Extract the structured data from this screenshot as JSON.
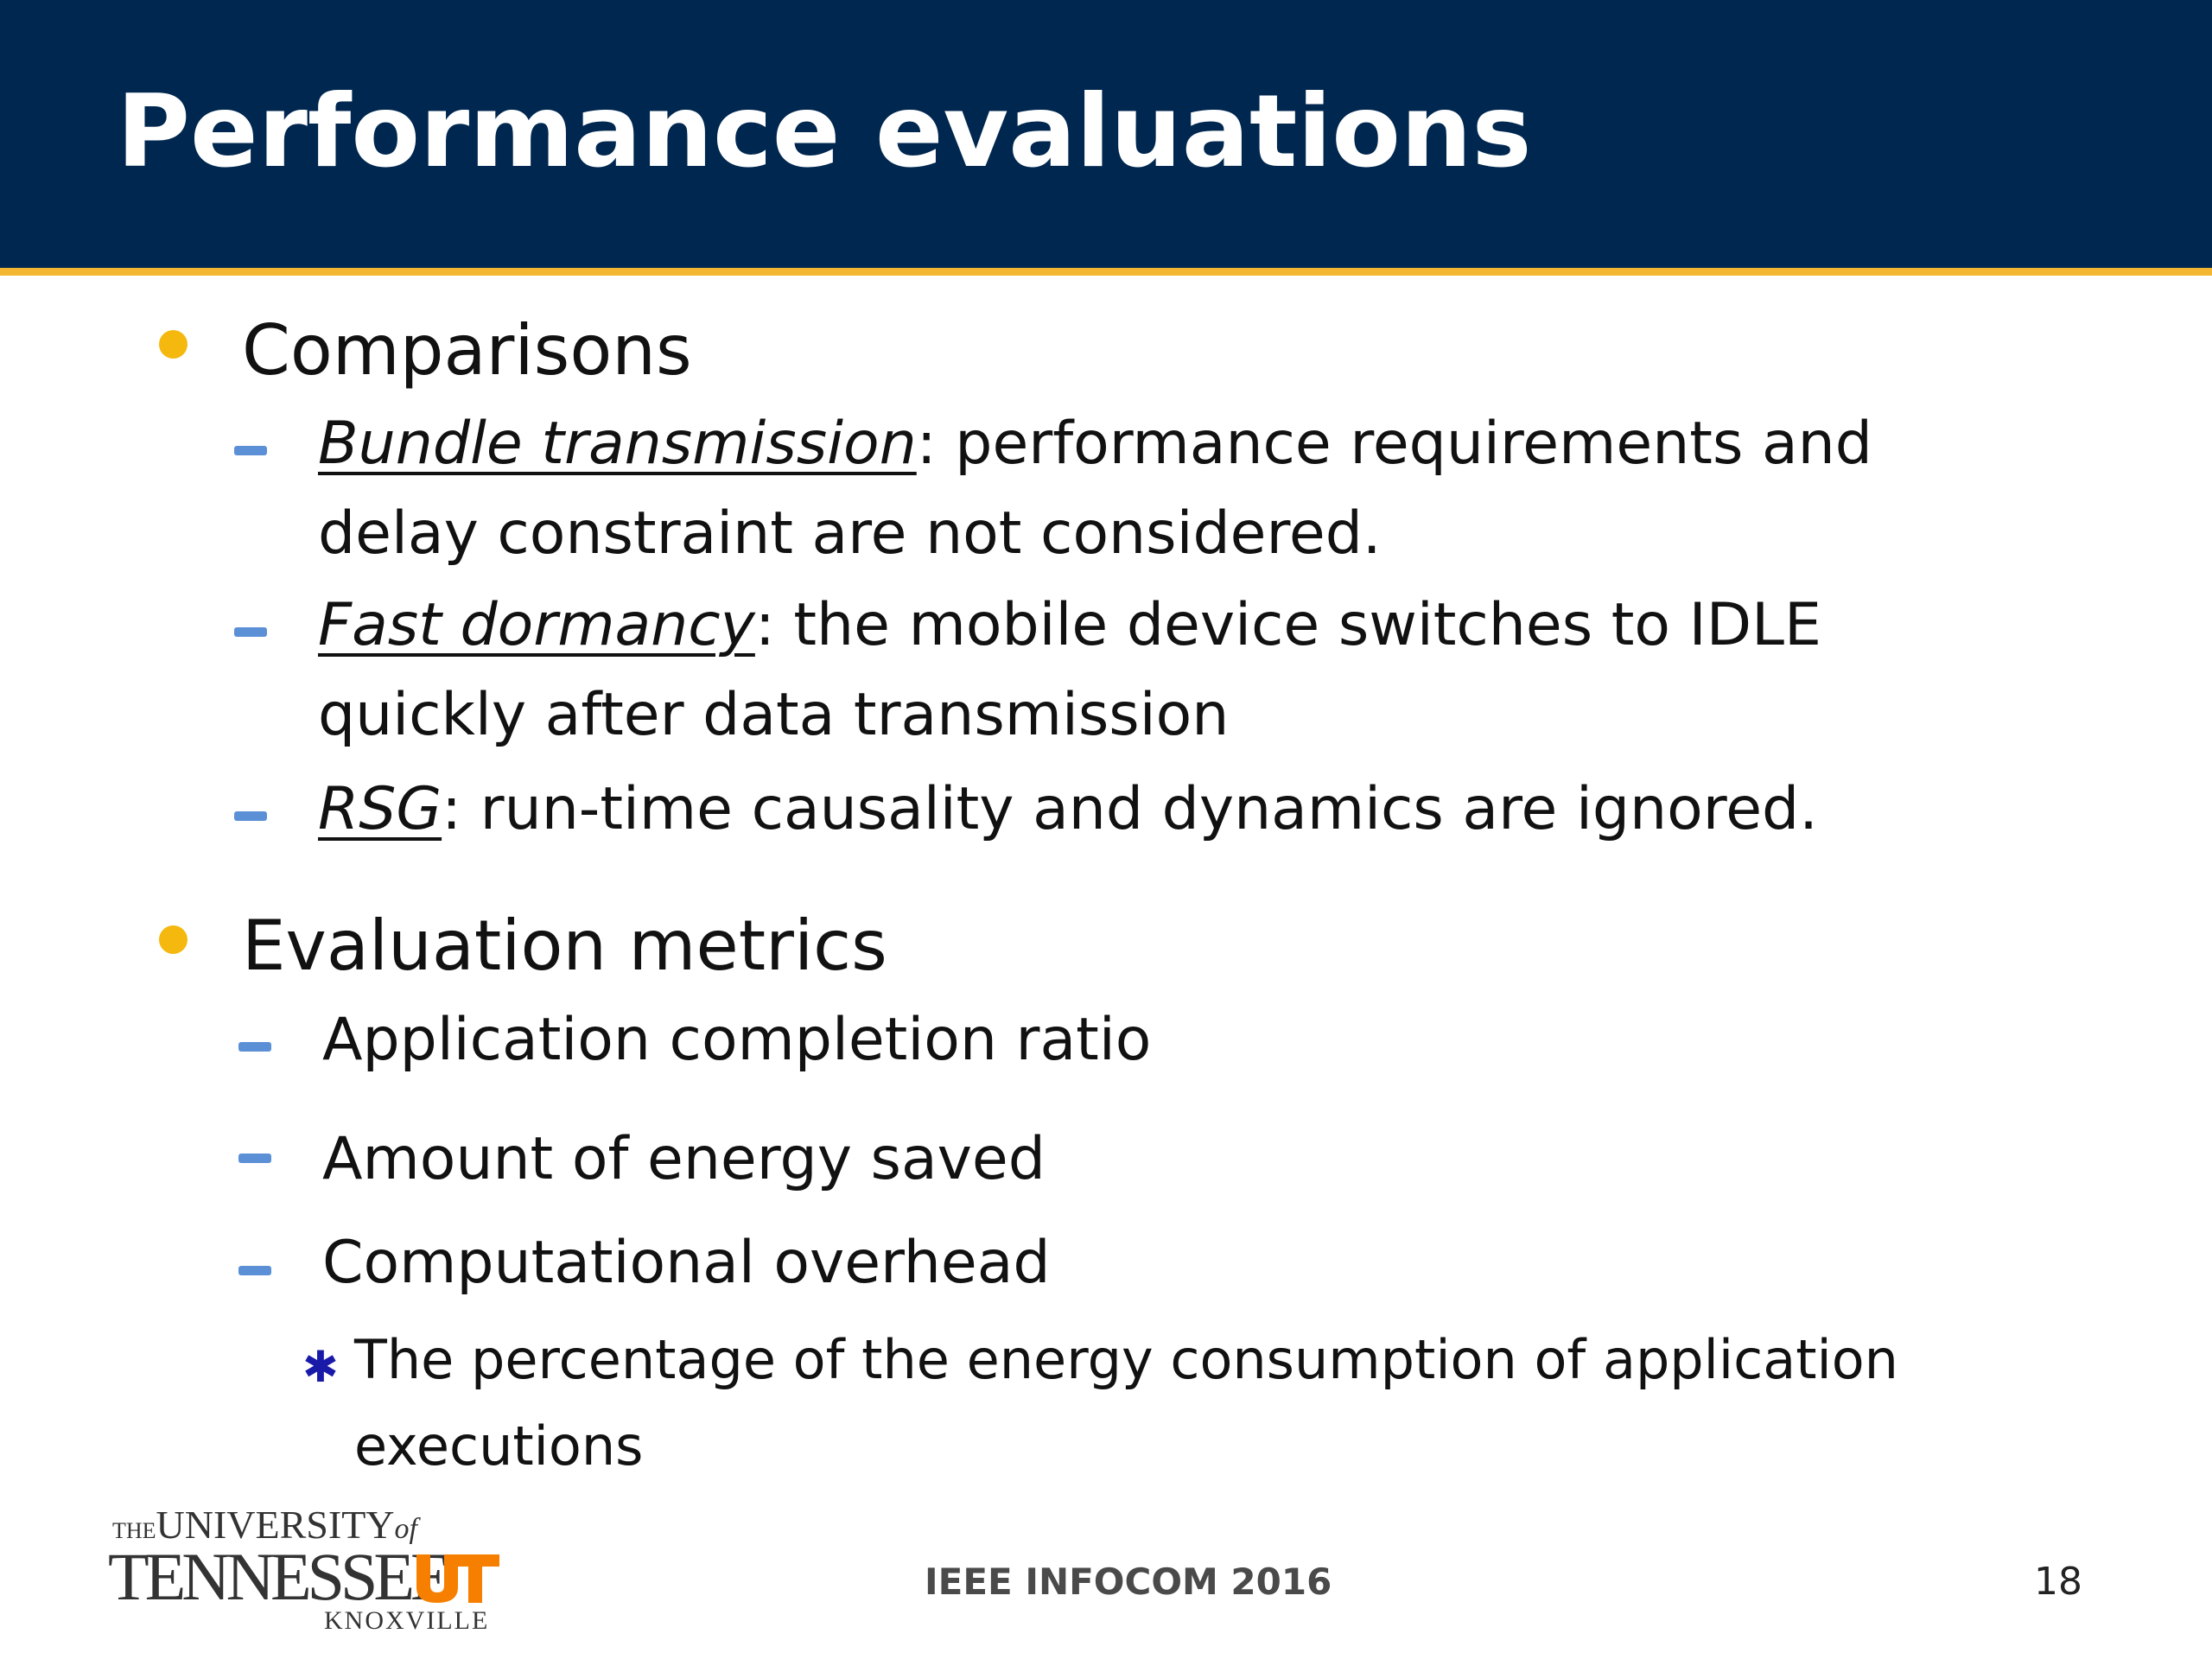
{
  "slide": {
    "title": "Performance evaluations",
    "sections": [
      {
        "heading": "Comparisons",
        "items": [
          {
            "term": "Bundle transmission",
            "text": ": performance requirements and delay constraint are not considered."
          },
          {
            "term": "Fast dormancy",
            "text": ": the mobile device switches to IDLE quickly after data transmission"
          },
          {
            "term": "RSG",
            "text": ": run-time causality and dynamics are ignored."
          }
        ]
      },
      {
        "heading": "Evaluation metrics",
        "items": [
          {
            "text": "Application completion ratio"
          },
          {
            "text": "Amount of energy saved"
          },
          {
            "text": "Computational overhead"
          }
        ],
        "subitems": [
          {
            "text": "The percentage of the energy consumption of application executions"
          }
        ]
      }
    ]
  },
  "footer": {
    "logo": {
      "the": "THE",
      "university": "UNIVERSITY",
      "of": "of",
      "name": "TENNESSEE",
      "monogram": "UT",
      "city": "KNOXVILLE"
    },
    "conference": "IEEE INFOCOM 2016",
    "page_number": "18"
  },
  "colors": {
    "header_bg": "#00274f",
    "header_rule": "#f2b632",
    "bullet": "#f5b80f",
    "dash": "#5b8fd6",
    "star": "#1a1aa8",
    "ut_orange": "#f77f00"
  }
}
